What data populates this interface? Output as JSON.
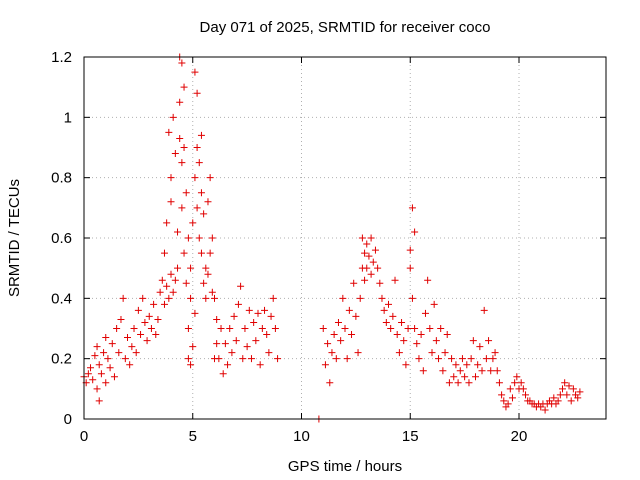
{
  "chart_data": {
    "type": "scatter",
    "title": "Day 071 of 2025, SRMTID for receiver coco",
    "xlabel": "GPS time / hours",
    "ylabel": "SRMTID / TECUs",
    "xlim": [
      0,
      24
    ],
    "ylim": [
      0,
      1.2
    ],
    "x_ticks": [
      0,
      5,
      10,
      15,
      20
    ],
    "y_ticks": [
      0,
      0.2,
      0.4,
      0.6,
      0.8,
      1,
      1.2
    ],
    "x_tick_labels": [
      "0",
      "5",
      "10",
      "15",
      "20"
    ],
    "y_tick_labels": [
      "0",
      "0.2",
      "0.4",
      "0.6",
      "0.8",
      "1",
      "1.2"
    ],
    "grid": true,
    "marker": "plus",
    "colors": {
      "series": "#e00000",
      "grid": "#b0b0b0",
      "axis": "#000000"
    },
    "series": [
      {
        "name": "SRMTID",
        "points": [
          [
            0.0,
            0.14
          ],
          [
            0.1,
            0.12
          ],
          [
            0.2,
            0.15
          ],
          [
            0.3,
            0.17
          ],
          [
            0.4,
            0.13
          ],
          [
            0.5,
            0.21
          ],
          [
            0.6,
            0.1
          ],
          [
            0.6,
            0.24
          ],
          [
            0.7,
            0.18
          ],
          [
            0.7,
            0.06
          ],
          [
            0.8,
            0.15
          ],
          [
            0.9,
            0.22
          ],
          [
            1.0,
            0.12
          ],
          [
            1.0,
            0.27
          ],
          [
            1.1,
            0.2
          ],
          [
            1.2,
            0.17
          ],
          [
            1.3,
            0.25
          ],
          [
            1.4,
            0.14
          ],
          [
            1.5,
            0.3
          ],
          [
            1.6,
            0.22
          ],
          [
            1.7,
            0.33
          ],
          [
            1.8,
            0.4
          ],
          [
            1.9,
            0.2
          ],
          [
            2.0,
            0.27
          ],
          [
            2.1,
            0.18
          ],
          [
            2.2,
            0.24
          ],
          [
            2.3,
            0.3
          ],
          [
            2.4,
            0.22
          ],
          [
            2.5,
            0.36
          ],
          [
            2.6,
            0.28
          ],
          [
            2.7,
            0.4
          ],
          [
            2.8,
            0.32
          ],
          [
            2.9,
            0.26
          ],
          [
            3.0,
            0.34
          ],
          [
            3.1,
            0.3
          ],
          [
            3.2,
            0.38
          ],
          [
            3.3,
            0.28
          ],
          [
            3.4,
            0.33
          ],
          [
            3.5,
            0.42
          ],
          [
            3.6,
            0.46
          ],
          [
            3.7,
            0.38
          ],
          [
            3.7,
            0.55
          ],
          [
            3.8,
            0.44
          ],
          [
            3.8,
            0.65
          ],
          [
            3.9,
            0.4
          ],
          [
            3.9,
            0.95
          ],
          [
            4.0,
            0.48
          ],
          [
            4.0,
            0.8
          ],
          [
            4.0,
            0.72
          ],
          [
            4.1,
            0.42
          ],
          [
            4.1,
            1.0
          ],
          [
            4.2,
            0.46
          ],
          [
            4.2,
            0.88
          ],
          [
            4.3,
            0.5
          ],
          [
            4.3,
            0.62
          ],
          [
            4.4,
            1.2
          ],
          [
            4.4,
            1.05
          ],
          [
            4.4,
            0.93
          ],
          [
            4.5,
            1.18
          ],
          [
            4.5,
            0.7
          ],
          [
            4.5,
            0.85
          ],
          [
            4.6,
            0.9
          ],
          [
            4.6,
            0.55
          ],
          [
            4.6,
            1.1
          ],
          [
            4.7,
            0.75
          ],
          [
            4.7,
            0.45
          ],
          [
            4.8,
            0.2
          ],
          [
            4.8,
            0.3
          ],
          [
            4.8,
            0.6
          ],
          [
            4.9,
            0.18
          ],
          [
            4.9,
            0.4
          ],
          [
            4.9,
            0.5
          ],
          [
            5.0,
            0.24
          ],
          [
            5.0,
            0.65
          ],
          [
            5.1,
            1.15
          ],
          [
            5.1,
            0.8
          ],
          [
            5.1,
            0.35
          ],
          [
            5.2,
            1.08
          ],
          [
            5.2,
            0.7
          ],
          [
            5.2,
            0.9
          ],
          [
            5.3,
            0.85
          ],
          [
            5.3,
            0.6
          ],
          [
            5.4,
            0.94
          ],
          [
            5.4,
            0.55
          ],
          [
            5.4,
            0.75
          ],
          [
            5.5,
            0.68
          ],
          [
            5.5,
            0.45
          ],
          [
            5.6,
            0.5
          ],
          [
            5.6,
            0.4
          ],
          [
            5.7,
            0.48
          ],
          [
            5.7,
            0.72
          ],
          [
            5.8,
            0.55
          ],
          [
            5.8,
            0.8
          ],
          [
            5.9,
            0.42
          ],
          [
            5.9,
            0.6
          ],
          [
            6.0,
            0.4
          ],
          [
            6.0,
            0.2
          ],
          [
            6.1,
            0.33
          ],
          [
            6.1,
            0.25
          ],
          [
            6.2,
            0.2
          ],
          [
            6.3,
            0.3
          ],
          [
            6.4,
            0.15
          ],
          [
            6.5,
            0.25
          ],
          [
            6.6,
            0.18
          ],
          [
            6.7,
            0.3
          ],
          [
            6.8,
            0.22
          ],
          [
            6.9,
            0.34
          ],
          [
            7.0,
            0.26
          ],
          [
            7.1,
            0.38
          ],
          [
            7.2,
            0.44
          ],
          [
            7.3,
            0.2
          ],
          [
            7.4,
            0.3
          ],
          [
            7.5,
            0.24
          ],
          [
            7.6,
            0.36
          ],
          [
            7.7,
            0.2
          ],
          [
            7.8,
            0.32
          ],
          [
            7.9,
            0.26
          ],
          [
            8.0,
            0.35
          ],
          [
            8.1,
            0.18
          ],
          [
            8.2,
            0.3
          ],
          [
            8.3,
            0.36
          ],
          [
            8.4,
            0.28
          ],
          [
            8.5,
            0.22
          ],
          [
            8.6,
            0.34
          ],
          [
            8.7,
            0.4
          ],
          [
            8.8,
            0.3
          ],
          [
            8.9,
            0.2
          ],
          [
            10.8,
            0.0
          ],
          [
            11.0,
            0.3
          ],
          [
            11.1,
            0.18
          ],
          [
            11.2,
            0.25
          ],
          [
            11.3,
            0.12
          ],
          [
            11.4,
            0.22
          ],
          [
            11.5,
            0.28
          ],
          [
            11.6,
            0.2
          ],
          [
            11.7,
            0.32
          ],
          [
            11.8,
            0.26
          ],
          [
            11.9,
            0.4
          ],
          [
            12.0,
            0.3
          ],
          [
            12.1,
            0.2
          ],
          [
            12.2,
            0.36
          ],
          [
            12.3,
            0.28
          ],
          [
            12.4,
            0.45
          ],
          [
            12.5,
            0.34
          ],
          [
            12.6,
            0.22
          ],
          [
            12.7,
            0.4
          ],
          [
            12.8,
            0.6
          ],
          [
            12.8,
            0.5
          ],
          [
            12.9,
            0.55
          ],
          [
            12.9,
            0.46
          ],
          [
            13.0,
            0.58
          ],
          [
            13.0,
            0.5
          ],
          [
            13.1,
            0.54
          ],
          [
            13.2,
            0.6
          ],
          [
            13.2,
            0.48
          ],
          [
            13.3,
            0.52
          ],
          [
            13.4,
            0.56
          ],
          [
            13.5,
            0.5
          ],
          [
            13.6,
            0.45
          ],
          [
            13.7,
            0.4
          ],
          [
            13.8,
            0.36
          ],
          [
            13.9,
            0.32
          ],
          [
            14.0,
            0.38
          ],
          [
            14.1,
            0.3
          ],
          [
            14.2,
            0.34
          ],
          [
            14.3,
            0.46
          ],
          [
            14.4,
            0.28
          ],
          [
            14.5,
            0.22
          ],
          [
            14.6,
            0.32
          ],
          [
            14.7,
            0.26
          ],
          [
            14.8,
            0.18
          ],
          [
            14.9,
            0.3
          ],
          [
            15.0,
            0.5
          ],
          [
            15.0,
            0.56
          ],
          [
            15.1,
            0.7
          ],
          [
            15.1,
            0.4
          ],
          [
            15.2,
            0.62
          ],
          [
            15.2,
            0.3
          ],
          [
            15.3,
            0.25
          ],
          [
            15.4,
            0.2
          ],
          [
            15.5,
            0.28
          ],
          [
            15.6,
            0.16
          ],
          [
            15.7,
            0.35
          ],
          [
            15.8,
            0.46
          ],
          [
            15.9,
            0.3
          ],
          [
            16.0,
            0.22
          ],
          [
            16.1,
            0.38
          ],
          [
            16.2,
            0.26
          ],
          [
            16.3,
            0.2
          ],
          [
            16.4,
            0.3
          ],
          [
            16.5,
            0.16
          ],
          [
            16.6,
            0.22
          ],
          [
            16.7,
            0.28
          ],
          [
            16.8,
            0.12
          ],
          [
            16.9,
            0.2
          ],
          [
            17.0,
            0.14
          ],
          [
            17.1,
            0.18
          ],
          [
            17.2,
            0.12
          ],
          [
            17.3,
            0.16
          ],
          [
            17.4,
            0.2
          ],
          [
            17.5,
            0.14
          ],
          [
            17.6,
            0.18
          ],
          [
            17.7,
            0.12
          ],
          [
            17.8,
            0.2
          ],
          [
            17.9,
            0.26
          ],
          [
            18.0,
            0.14
          ],
          [
            18.1,
            0.18
          ],
          [
            18.2,
            0.24
          ],
          [
            18.3,
            0.16
          ],
          [
            18.4,
            0.36
          ],
          [
            18.5,
            0.2
          ],
          [
            18.6,
            0.26
          ],
          [
            18.7,
            0.16
          ],
          [
            18.8,
            0.2
          ],
          [
            18.9,
            0.22
          ],
          [
            19.0,
            0.16
          ],
          [
            19.1,
            0.12
          ],
          [
            19.2,
            0.08
          ],
          [
            19.3,
            0.06
          ],
          [
            19.4,
            0.04
          ],
          [
            19.5,
            0.05
          ],
          [
            19.6,
            0.1
          ],
          [
            19.7,
            0.07
          ],
          [
            19.8,
            0.12
          ],
          [
            19.9,
            0.14
          ],
          [
            20.0,
            0.1
          ],
          [
            20.1,
            0.12
          ],
          [
            20.2,
            0.1
          ],
          [
            20.3,
            0.08
          ],
          [
            20.4,
            0.06
          ],
          [
            20.5,
            0.06
          ],
          [
            20.6,
            0.05
          ],
          [
            20.7,
            0.05
          ],
          [
            20.8,
            0.04
          ],
          [
            20.9,
            0.05
          ],
          [
            21.0,
            0.04
          ],
          [
            21.1,
            0.05
          ],
          [
            21.2,
            0.03
          ],
          [
            21.3,
            0.05
          ],
          [
            21.4,
            0.06
          ],
          [
            21.5,
            0.05
          ],
          [
            21.6,
            0.07
          ],
          [
            21.7,
            0.05
          ],
          [
            21.8,
            0.06
          ],
          [
            21.9,
            0.08
          ],
          [
            22.0,
            0.1
          ],
          [
            22.1,
            0.12
          ],
          [
            22.2,
            0.08
          ],
          [
            22.3,
            0.11
          ],
          [
            22.4,
            0.06
          ],
          [
            22.5,
            0.1
          ],
          [
            22.6,
            0.08
          ],
          [
            22.7,
            0.07
          ],
          [
            22.8,
            0.09
          ]
        ]
      }
    ]
  }
}
